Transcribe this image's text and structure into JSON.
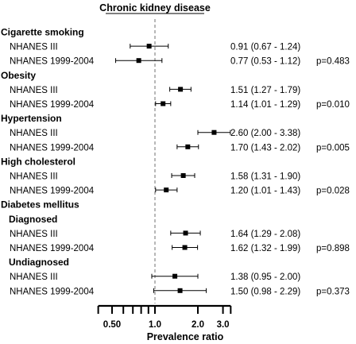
{
  "chart_data": {
    "type": "forest",
    "title": "Chronic kidney disease",
    "xlabel": "Prevalence ratio",
    "x_scale": "log",
    "x_ticks": [
      0.5,
      1.0,
      2.0,
      3.0
    ],
    "x_tick_labels": [
      "0.50",
      "1.0",
      "2.0",
      "3.0"
    ],
    "reference_line": 1.0,
    "rows": [
      {
        "kind": "group",
        "label": "Cigarette smoking"
      },
      {
        "kind": "item",
        "label": "NHANES III",
        "pr": 0.91,
        "lo": 0.67,
        "hi": 1.24,
        "ci_text": "0.91 (0.67 - 1.24)",
        "p_text": ""
      },
      {
        "kind": "item",
        "label": "NHANES 1999-2004",
        "pr": 0.77,
        "lo": 0.53,
        "hi": 1.12,
        "ci_text": "0.77 (0.53 - 1.12)",
        "p_text": "p=0.483"
      },
      {
        "kind": "group",
        "label": "Obesity"
      },
      {
        "kind": "item",
        "label": "NHANES III",
        "pr": 1.51,
        "lo": 1.27,
        "hi": 1.79,
        "ci_text": "1.51 (1.27 - 1.79)",
        "p_text": ""
      },
      {
        "kind": "item",
        "label": "NHANES 1999-2004",
        "pr": 1.14,
        "lo": 1.01,
        "hi": 1.29,
        "ci_text": "1.14 (1.01 - 1.29)",
        "p_text": "p=0.010"
      },
      {
        "kind": "group",
        "label": "Hypertension"
      },
      {
        "kind": "item",
        "label": "NHANES III",
        "pr": 2.6,
        "lo": 2.0,
        "hi": 3.38,
        "ci_text": "2.60 (2.00 - 3.38)",
        "p_text": ""
      },
      {
        "kind": "item",
        "label": "NHANES 1999-2004",
        "pr": 1.7,
        "lo": 1.43,
        "hi": 2.02,
        "ci_text": "1.70 (1.43 - 2.02)",
        "p_text": "p=0.005"
      },
      {
        "kind": "group",
        "label": "High cholesterol"
      },
      {
        "kind": "item",
        "label": "NHANES III",
        "pr": 1.58,
        "lo": 1.31,
        "hi": 1.9,
        "ci_text": "1.58 (1.31 - 1.90)",
        "p_text": ""
      },
      {
        "kind": "item",
        "label": "NHANES 1999-2004",
        "pr": 1.2,
        "lo": 1.01,
        "hi": 1.43,
        "ci_text": "1.20 (1.01 - 1.43)",
        "p_text": "p=0.028"
      },
      {
        "kind": "group",
        "label": "Diabetes mellitus"
      },
      {
        "kind": "subgroup",
        "label": "Diagnosed"
      },
      {
        "kind": "item",
        "label": "NHANES III",
        "pr": 1.64,
        "lo": 1.29,
        "hi": 2.08,
        "ci_text": "1.64 (1.29 - 2.08)",
        "p_text": ""
      },
      {
        "kind": "item",
        "label": "NHANES 1999-2004",
        "pr": 1.62,
        "lo": 1.32,
        "hi": 1.99,
        "ci_text": "1.62 (1.32 - 1.99)",
        "p_text": "p=0.898"
      },
      {
        "kind": "subgroup",
        "label": "Undiagnosed"
      },
      {
        "kind": "item",
        "label": "NHANES III",
        "pr": 1.38,
        "lo": 0.95,
        "hi": 2.0,
        "ci_text": "1.38 (0.95 - 2.00)",
        "p_text": ""
      },
      {
        "kind": "item",
        "label": "NHANES 1999-2004",
        "pr": 1.5,
        "lo": 0.98,
        "hi": 2.29,
        "ci_text": "1.50 (0.98 - 2.29)",
        "p_text": "p=0.373"
      }
    ]
  }
}
